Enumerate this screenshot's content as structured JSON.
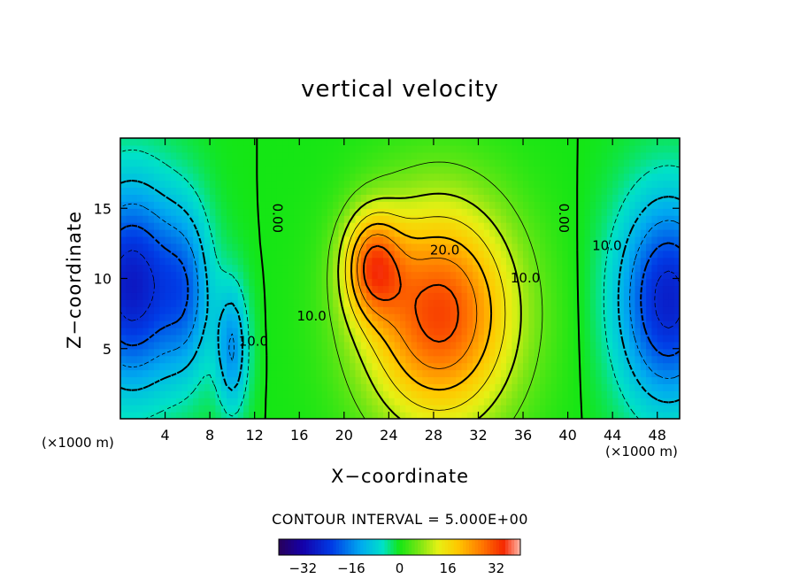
{
  "chart_data": {
    "type": "heatmap",
    "title": "vertical velocity",
    "xlabel": "X−coordinate",
    "ylabel": "Z−coordinate",
    "x_unit": "(×1000 m)",
    "xlim": [
      0,
      50
    ],
    "ylim": [
      0,
      20
    ],
    "x_ticks": [
      4,
      8,
      12,
      16,
      20,
      24,
      28,
      32,
      36,
      40,
      44,
      48
    ],
    "x_tick_labels": [
      "4",
      "8",
      "12",
      "16",
      "20",
      "24",
      "28",
      "32",
      "36",
      "40",
      "44",
      "48"
    ],
    "y_ticks": [
      5,
      10,
      15
    ],
    "y_tick_labels": [
      "5",
      "10",
      "15"
    ],
    "contour_interval_text": "CONTOUR INTERVAL = 5.000E+00",
    "contour_interval": 5.0,
    "contour_labels": [
      {
        "text": "0.00",
        "x": 14.0,
        "y": 14.3
      },
      {
        "text": "0.00",
        "x": 39.6,
        "y": 14.3
      },
      {
        "text": "10.0",
        "x": 17.1,
        "y": 7.3
      },
      {
        "text": "10.0",
        "x": 36.2,
        "y": 10.0
      },
      {
        "text": "20.0",
        "x": 29.0,
        "y": 12.0
      },
      {
        "text": "10.0",
        "x": 11.9,
        "y": 5.5
      },
      {
        "text": "10.0",
        "x": 43.5,
        "y": 12.3
      }
    ],
    "field_features": [
      {
        "kind": "max",
        "x": 28.5,
        "y": 7.5,
        "value": 32
      },
      {
        "kind": "max",
        "x": 22.5,
        "y": 11.0,
        "value": 22
      },
      {
        "kind": "min",
        "x": 1.0,
        "y": 9.5,
        "value": -28
      },
      {
        "kind": "min",
        "x": 49.0,
        "y": 8.5,
        "value": -27
      },
      {
        "kind": "min",
        "x": 10.0,
        "y": 5.0,
        "value": -15
      },
      {
        "kind": "min",
        "x": 6.0,
        "y": 9.0,
        "value": -12
      }
    ],
    "colorbar": {
      "range": [
        -40,
        40
      ],
      "ticks": [
        -32,
        -16,
        0,
        16,
        32
      ],
      "tick_labels": [
        "−32",
        "−16",
        "0",
        "16",
        "32"
      ]
    },
    "grid": false,
    "legend": "colorbar-bottom"
  }
}
